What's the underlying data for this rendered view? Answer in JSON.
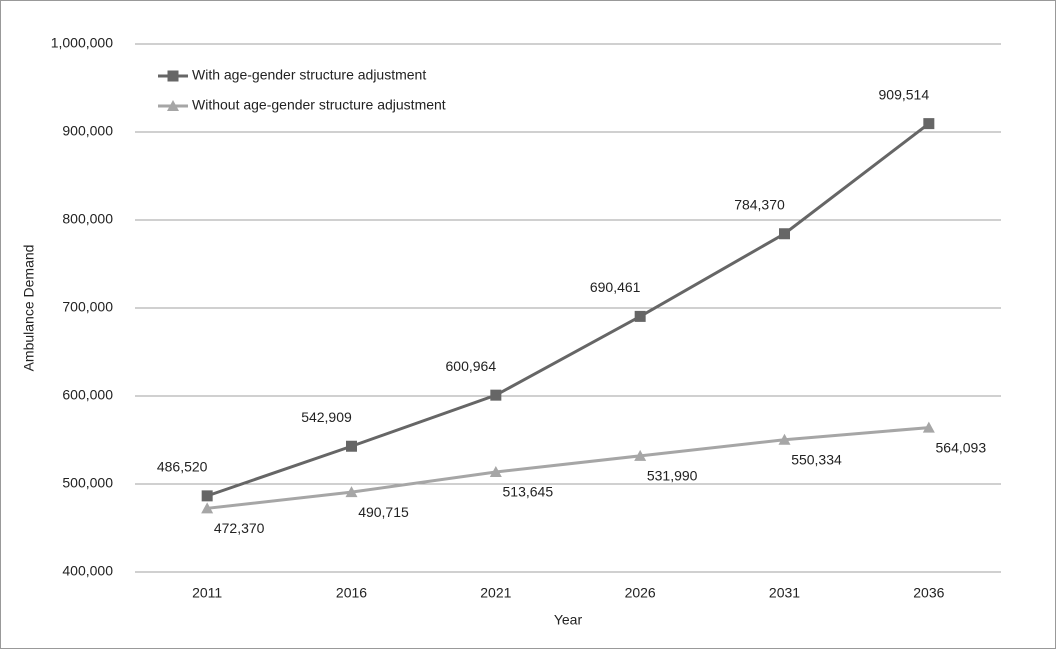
{
  "chart_data": {
    "type": "line",
    "x_label": "Year",
    "y_label": "Ambulance Demand",
    "categories": [
      "2011",
      "2016",
      "2021",
      "2026",
      "2031",
      "2036"
    ],
    "series": [
      {
        "name": "With age-gender structure adjustment",
        "color": "#666666",
        "marker": "square",
        "values": [
          486520,
          542909,
          600964,
          690461,
          784370,
          909514
        ],
        "value_labels": [
          "486,520",
          "542,909",
          "600,964",
          "690,461",
          "784,370",
          "909,514"
        ]
      },
      {
        "name": "Without age-gender structure adjustment",
        "color": "#a6a6a6",
        "marker": "triangle",
        "values": [
          472370,
          490715,
          513645,
          531990,
          550334,
          564093
        ],
        "value_labels": [
          "472,370",
          "490,715",
          "513,645",
          "531,990",
          "550,334",
          "564,093"
        ]
      }
    ],
    "ylim": [
      400000,
      1000000
    ],
    "yticks": [
      {
        "value": 400000,
        "label": "400,000"
      },
      {
        "value": 500000,
        "label": "500,000"
      },
      {
        "value": 600000,
        "label": "600,000"
      },
      {
        "value": 700000,
        "label": "700,000"
      },
      {
        "value": 800000,
        "label": "800,000"
      },
      {
        "value": 900000,
        "label": "900,000"
      },
      {
        "value": 1000000,
        "label": "1,000,000"
      }
    ],
    "grid": true,
    "legend": "top-left"
  }
}
